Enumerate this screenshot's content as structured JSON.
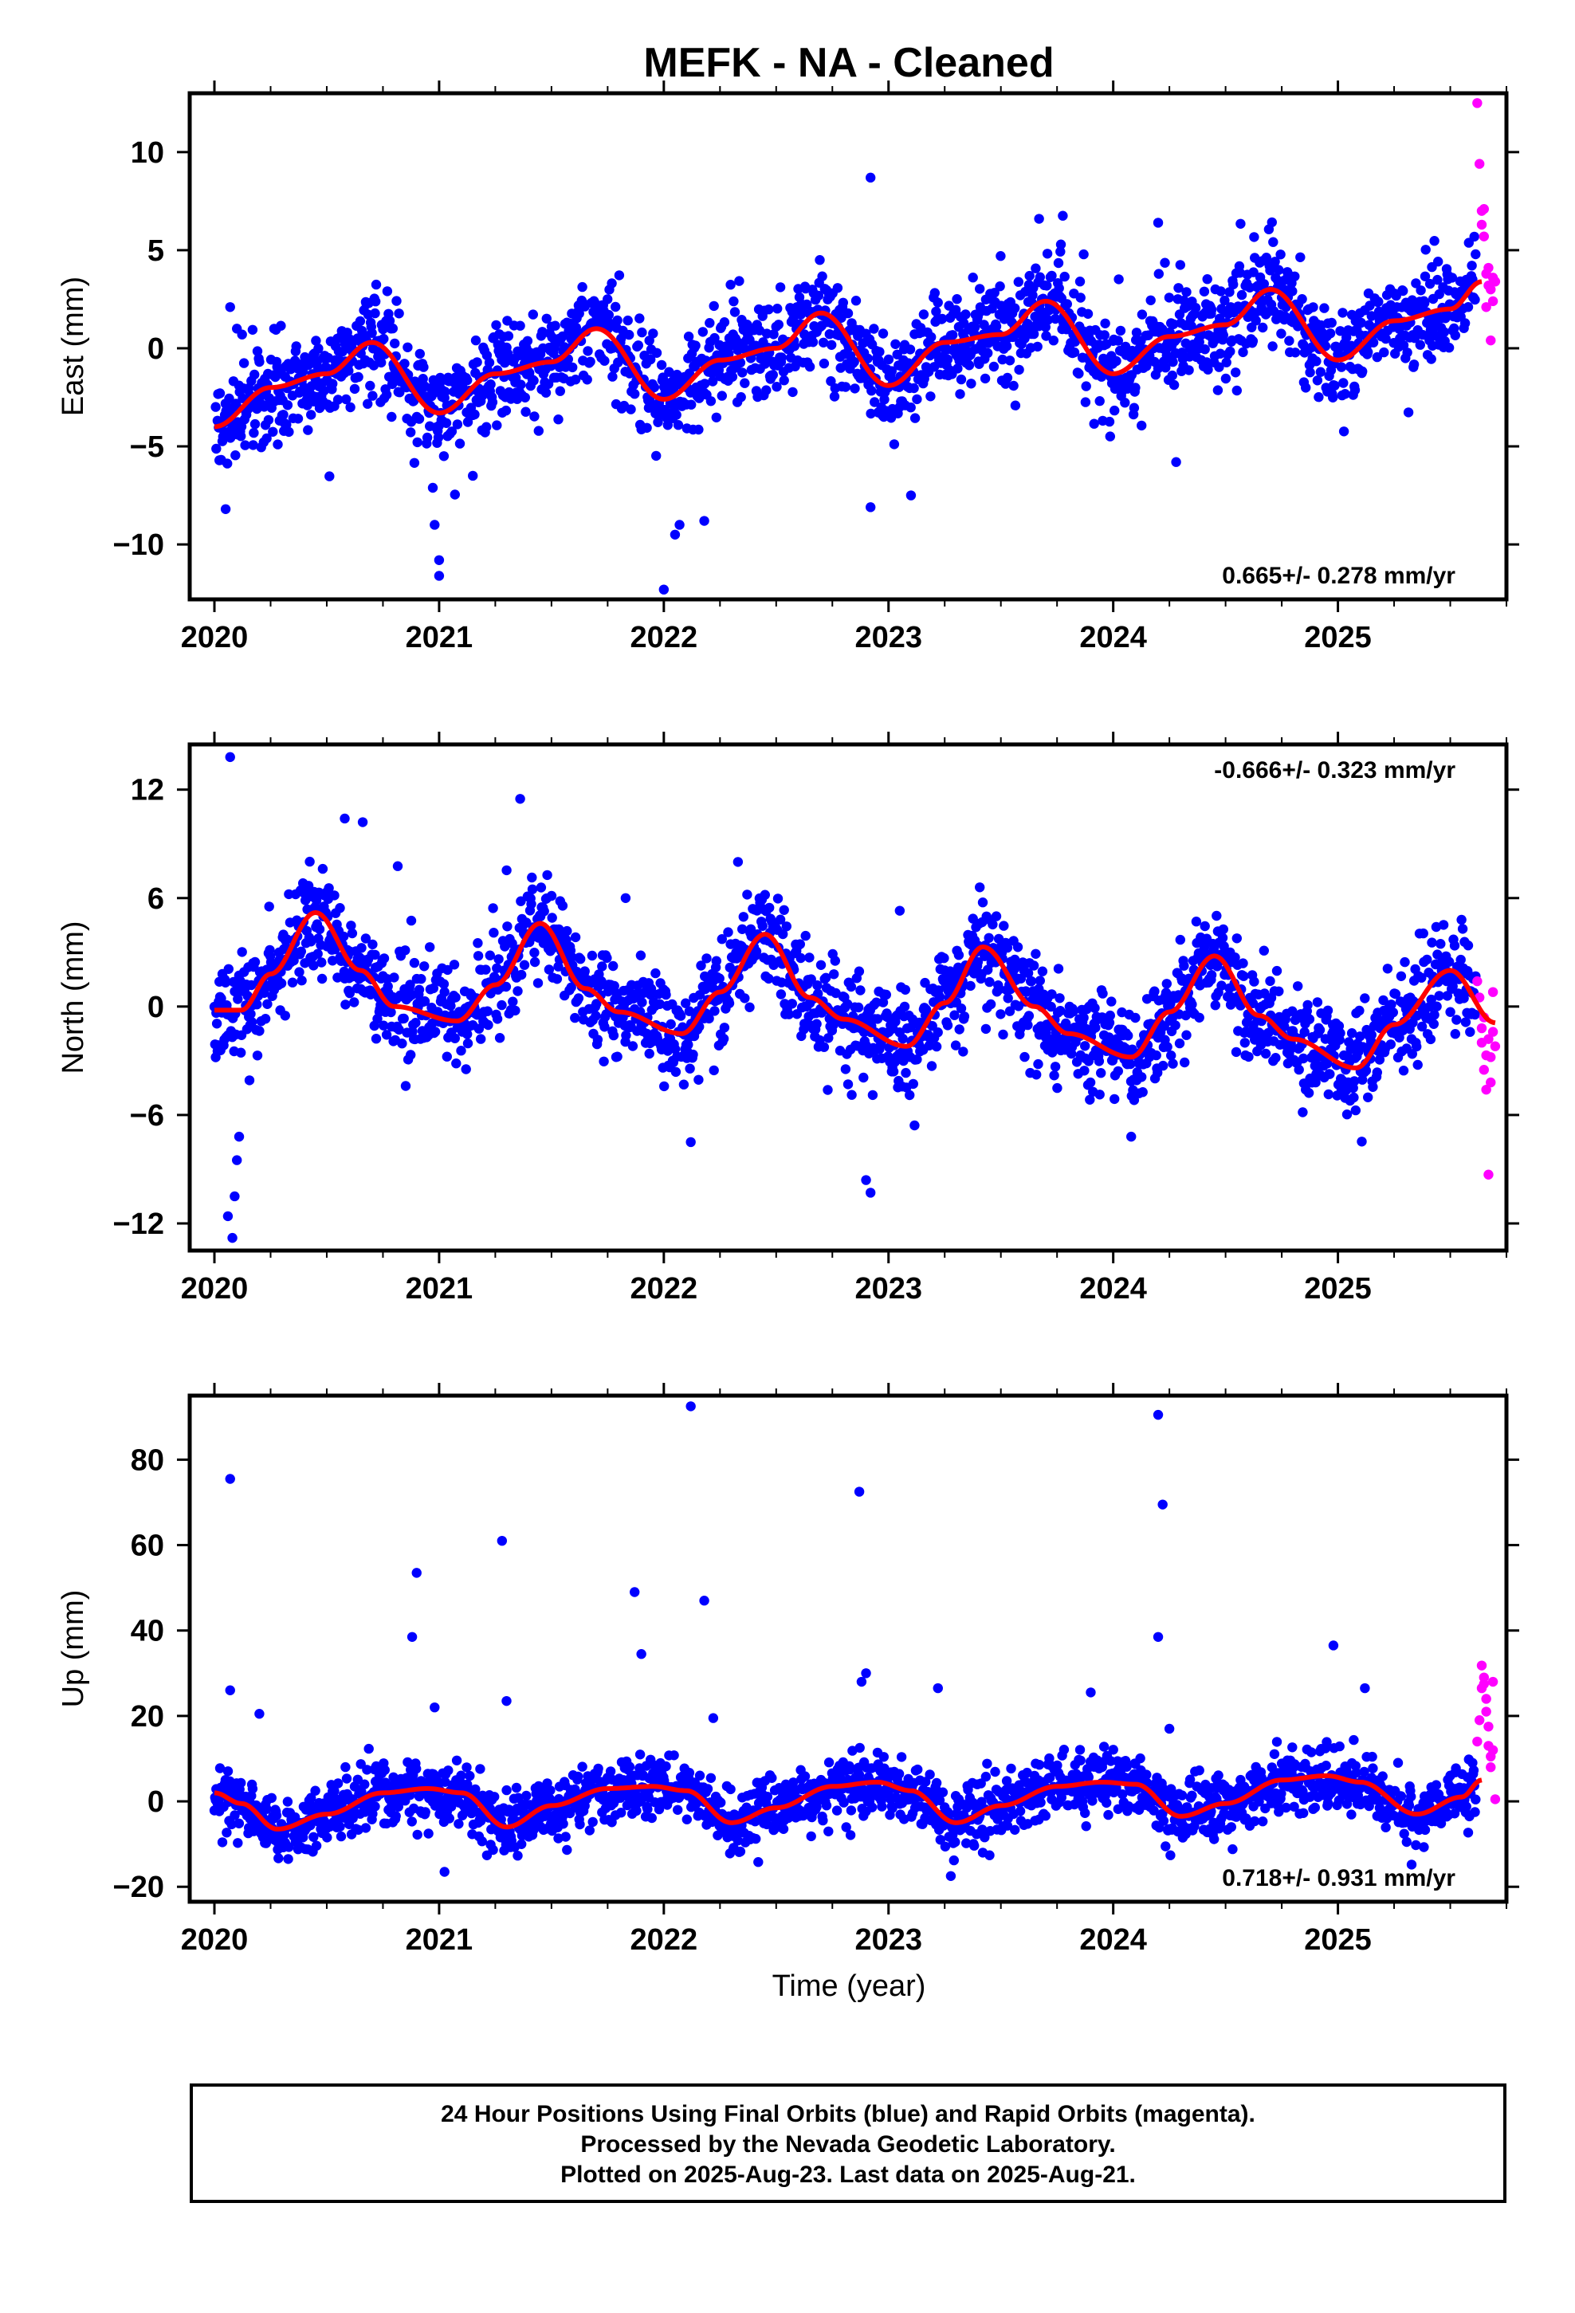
{
  "title": "MEFK  - NA - Cleaned",
  "xlabel": "Time (year)",
  "footer": {
    "line1": "24 Hour Positions Using Final Orbits (blue) and Rapid Orbits (magenta).",
    "line2": "Processed by the Nevada Geodetic Laboratory.",
    "line3": "Plotted on 2025-Aug-23. Last data on 2025-Aug-21."
  },
  "colors": {
    "final_orbits": "#0000ff",
    "rapid_orbits": "#ff00ff",
    "model_fit": "#ff0000"
  },
  "chart_data": [
    {
      "type": "scatter",
      "component": "East",
      "ylabel": "East (mm)",
      "rate_label": "0.665+/- 0.278 mm/yr",
      "rate_position": "bottom-right",
      "xlim": [
        2019.89,
        2025.75
      ],
      "ylim": [
        -12.8,
        13.0
      ],
      "xticks": [
        2020,
        2021,
        2022,
        2023,
        2024,
        2025
      ],
      "yticks": [
        -10,
        -5,
        0,
        5,
        10
      ],
      "ytick_labels": [
        "−10",
        "−5",
        "0",
        "5",
        "10"
      ],
      "model_fit": {
        "name": "model fit",
        "x": [
          2020.0,
          2020.25,
          2020.5,
          2020.7,
          2021.0,
          2021.25,
          2021.5,
          2021.7,
          2022.0,
          2022.25,
          2022.5,
          2022.7,
          2023.0,
          2023.25,
          2023.5,
          2023.7,
          2024.0,
          2024.25,
          2024.5,
          2024.7,
          2025.0,
          2025.25,
          2025.5,
          2025.64
        ],
        "y": [
          -4.0,
          -2.0,
          -1.3,
          0.3,
          -3.3,
          -1.3,
          -0.7,
          1.0,
          -2.6,
          -0.6,
          0.0,
          1.8,
          -1.9,
          0.3,
          0.7,
          2.4,
          -1.3,
          0.6,
          1.2,
          3.0,
          -0.6,
          1.4,
          2.0,
          3.4
        ]
      },
      "series": [
        {
          "name": "Final Orbits",
          "color": "#0000ff",
          "outliers": {
            "x": [
              2020.05,
              2020.07,
              2021.0,
              2021.0,
              2020.98,
              2021.15,
              2022.0,
              2022.05,
              2022.07,
              2022.18,
              2022.92,
              2022.92,
              2023.1,
              2024.2,
              2024.28,
              2023.67,
              2020.1
            ],
            "y": [
              -8.2,
              2.1,
              -11.6,
              -10.8,
              -9.0,
              -6.5,
              -12.3,
              -9.5,
              -9.0,
              -8.8,
              8.7,
              -8.1,
              -7.5,
              6.4,
              -5.8,
              6.6,
              1.0
            ]
          }
        },
        {
          "name": "Rapid Orbits",
          "color": "#ff00ff",
          "x": [
            2025.62,
            2025.63,
            2025.64,
            2025.64,
            2025.65,
            2025.65,
            2025.66,
            2025.66,
            2025.67,
            2025.67,
            2025.68,
            2025.68,
            2025.69,
            2025.69,
            2025.7
          ],
          "y": [
            12.5,
            9.4,
            7.0,
            6.3,
            7.1,
            5.7,
            3.8,
            2.1,
            3.2,
            4.1,
            0.4,
            3.0,
            3.6,
            2.4,
            3.4
          ]
        }
      ]
    },
    {
      "type": "scatter",
      "component": "North",
      "ylabel": "North (mm)",
      "rate_label": "-0.666+/- 0.323 mm/yr",
      "rate_position": "top-right",
      "xlim": [
        2019.89,
        2025.75
      ],
      "ylim": [
        -13.5,
        14.5
      ],
      "xticks": [
        2020,
        2021,
        2022,
        2023,
        2024,
        2025
      ],
      "yticks": [
        -12,
        -6,
        0,
        6,
        12
      ],
      "ytick_labels": [
        "−12",
        "−6",
        "0",
        "6",
        "12"
      ],
      "model_fit": {
        "name": "model fit",
        "x": [
          2020.0,
          2020.12,
          2020.25,
          2020.45,
          2020.65,
          2020.8,
          2021.08,
          2021.25,
          2021.45,
          2021.65,
          2021.8,
          2022.08,
          2022.25,
          2022.45,
          2022.65,
          2022.8,
          2023.08,
          2023.25,
          2023.42,
          2023.65,
          2023.8,
          2024.08,
          2024.25,
          2024.45,
          2024.65,
          2024.8,
          2025.08,
          2025.25,
          2025.5,
          2025.7
        ],
        "y": [
          -0.2,
          -0.2,
          1.8,
          5.2,
          2.0,
          0.0,
          -0.8,
          1.2,
          4.6,
          1.0,
          -0.3,
          -1.5,
          0.8,
          4.0,
          0.5,
          -0.7,
          -2.2,
          0.2,
          3.3,
          0.0,
          -1.5,
          -2.8,
          -0.3,
          2.8,
          -0.5,
          -1.8,
          -3.4,
          -1.0,
          2.0,
          -0.9
        ]
      },
      "series": [
        {
          "name": "Final Orbits",
          "color": "#0000ff",
          "outliers": {
            "x": [
              2020.07,
              2020.08,
              2020.09,
              2020.06,
              2020.1,
              2020.11,
              2020.58,
              2020.66,
              2021.83,
              2022.12,
              2022.33,
              2022.9,
              2022.92,
              2023.05,
              2024.08,
              2025.55
            ],
            "y": [
              13.8,
              -12.8,
              -10.5,
              -11.6,
              -8.5,
              -7.2,
              10.4,
              10.2,
              6.0,
              -7.5,
              8.0,
              -9.6,
              -10.3,
              5.3,
              -7.2,
              4.8
            ]
          }
        },
        {
          "name": "Rapid Orbits",
          "color": "#ff00ff",
          "x": [
            2025.62,
            2025.63,
            2025.64,
            2025.64,
            2025.65,
            2025.65,
            2025.66,
            2025.66,
            2025.67,
            2025.67,
            2025.68,
            2025.68,
            2025.69,
            2025.69,
            2025.7
          ],
          "y": [
            1.4,
            0.5,
            -1.2,
            -2.0,
            -0.6,
            -3.5,
            -2.7,
            -4.6,
            -1.8,
            -9.3,
            -2.8,
            -4.2,
            0.8,
            -1.4,
            -2.2
          ]
        }
      ]
    },
    {
      "type": "scatter",
      "component": "Up",
      "ylabel": "Up (mm)",
      "rate_label": "0.718+/- 0.931 mm/yr",
      "rate_position": "bottom-right",
      "xlim": [
        2019.89,
        2025.75
      ],
      "ylim": [
        -23.5,
        95.0
      ],
      "xticks": [
        2020,
        2021,
        2022,
        2023,
        2024,
        2025
      ],
      "yticks": [
        -20,
        0,
        20,
        40,
        60,
        80
      ],
      "ytick_labels": [
        "−20",
        "0",
        "20",
        "40",
        "60",
        "80"
      ],
      "model_fit": {
        "name": "model fit",
        "x": [
          2020.0,
          2020.12,
          2020.28,
          2020.5,
          2020.75,
          2020.95,
          2021.1,
          2021.3,
          2021.5,
          2021.75,
          2021.95,
          2022.1,
          2022.3,
          2022.5,
          2022.75,
          2022.95,
          2023.1,
          2023.3,
          2023.5,
          2023.75,
          2023.95,
          2024.1,
          2024.3,
          2024.5,
          2024.75,
          2024.95,
          2025.1,
          2025.35,
          2025.55,
          2025.64
        ],
        "y": [
          2.0,
          -0.5,
          -6.5,
          -3.0,
          2.0,
          3.0,
          2.0,
          -6.0,
          -1.0,
          3.0,
          3.5,
          2.5,
          -5.0,
          -1.5,
          3.5,
          4.5,
          2.5,
          -5.0,
          -1.0,
          3.5,
          4.5,
          4.0,
          -3.5,
          -0.5,
          5.0,
          6.0,
          4.5,
          -3.0,
          1.0,
          5.0
        ]
      },
      "series": [
        {
          "name": "Final Orbits",
          "color": "#0000ff",
          "outliers": {
            "x": [
              2020.07,
              2020.07,
              2020.2,
              2020.88,
              2020.9,
              2020.98,
              2021.28,
              2021.3,
              2021.87,
              2021.9,
              2022.12,
              2022.18,
              2022.22,
              2022.87,
              2022.88,
              2022.9,
              2023.22,
              2023.9,
              2024.2,
              2024.22,
              2024.2,
              2024.25,
              2024.98,
              2025.12
            ],
            "y": [
              75.5,
              26.0,
              20.5,
              38.5,
              53.5,
              22.0,
              61.0,
              23.5,
              49.0,
              34.5,
              92.5,
              47.0,
              19.5,
              72.5,
              28.0,
              30.0,
              26.5,
              25.5,
              90.5,
              69.5,
              38.5,
              17.0,
              36.5,
              26.5
            ]
          }
        },
        {
          "name": "Rapid Orbits",
          "color": "#ff00ff",
          "x": [
            2025.62,
            2025.63,
            2025.64,
            2025.64,
            2025.65,
            2025.65,
            2025.66,
            2025.66,
            2025.67,
            2025.67,
            2025.68,
            2025.68,
            2025.69,
            2025.69,
            2025.7
          ],
          "y": [
            14.0,
            19.0,
            26.5,
            31.8,
            29.0,
            27.5,
            24.0,
            21.0,
            17.5,
            13.0,
            10.5,
            8.0,
            12.0,
            28.0,
            0.5
          ]
        }
      ]
    }
  ]
}
